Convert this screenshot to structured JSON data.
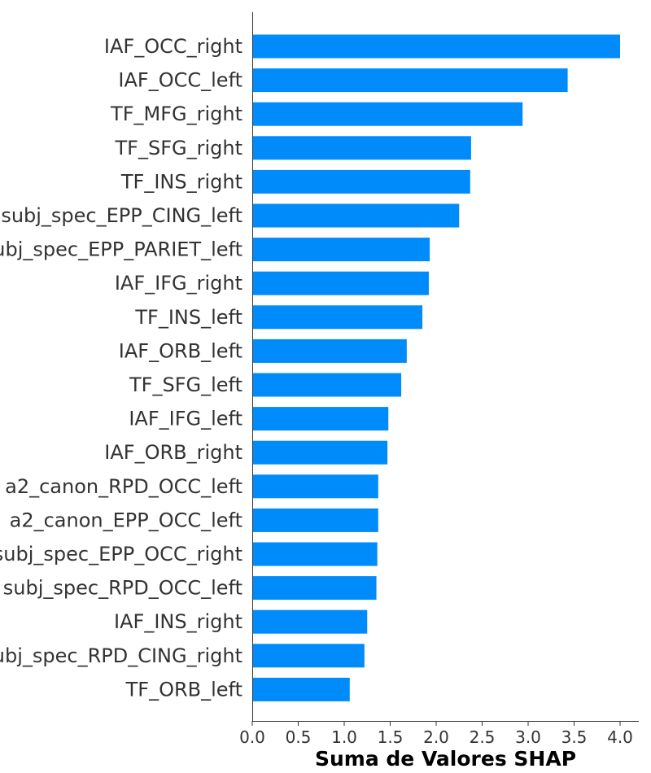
{
  "chart_data": {
    "type": "bar",
    "orientation": "horizontal",
    "bar_color": "#008bfb",
    "axis_color": "#333333",
    "xlabel": "Suma de Valores SHAP",
    "ylabel": "",
    "title": "",
    "xlim": [
      0,
      4.2
    ],
    "xticks": [
      0.0,
      0.5,
      1.0,
      1.5,
      2.0,
      2.5,
      3.0,
      3.5,
      4.0
    ],
    "xtick_labels": [
      "0.0",
      "0.5",
      "1.0",
      "1.5",
      "2.0",
      "2.5",
      "3.0",
      "3.5",
      "4.0"
    ],
    "grid": false,
    "categories": [
      "IAF_OCC_right",
      "IAF_OCC_left",
      "TF_MFG_right",
      "TF_SFG_right",
      "TF_INS_right",
      "subj_spec_EPP_CING_left",
      "subj_spec_EPP_PARIET_left",
      "IAF_IFG_right",
      "TF_INS_left",
      "IAF_ORB_left",
      "TF_SFG_left",
      "IAF_IFG_left",
      "IAF_ORB_right",
      "a2_canon_RPD_OCC_left",
      "a2_canon_EPP_OCC_left",
      "subj_spec_EPP_OCC_right",
      "subj_spec_RPD_OCC_left",
      "IAF_INS_right",
      "subj_spec_RPD_CING_right",
      "TF_ORB_left"
    ],
    "values": [
      4.0,
      3.43,
      2.94,
      2.38,
      2.37,
      2.25,
      1.93,
      1.92,
      1.85,
      1.68,
      1.62,
      1.48,
      1.47,
      1.37,
      1.37,
      1.36,
      1.35,
      1.25,
      1.22,
      1.06
    ]
  }
}
